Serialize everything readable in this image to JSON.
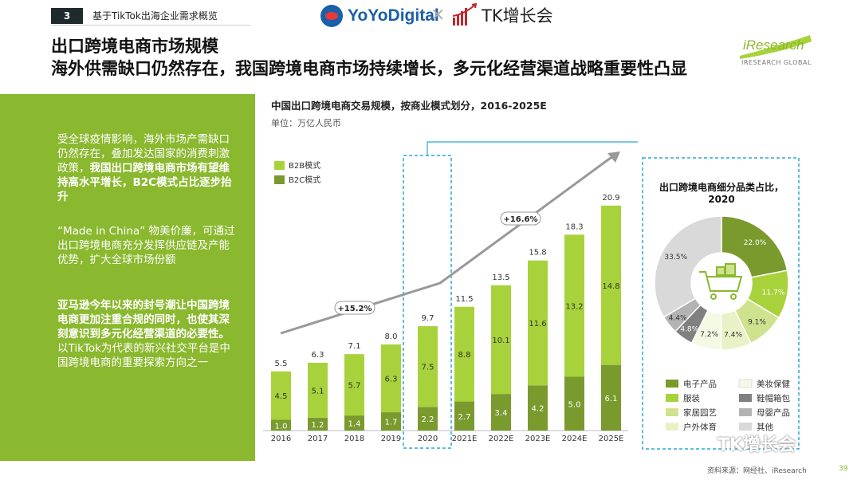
{
  "header": {
    "page_number": "3",
    "doc_title": "基于TikTok出海企业需求概览",
    "brand_left": "YoYoDigital",
    "brand_cross": "×",
    "brand_right": "TK增长会"
  },
  "heading": {
    "line1": "出口跨境电商市场规模",
    "line2": "海外供需缺口仍然存在，我国跨境电商市场持续增长，多元化经营渠道战略重要性凸显"
  },
  "logo": {
    "text": "iResearch",
    "sub": "IRESEARCH GLOBAL"
  },
  "sidebar": {
    "p1_normal": "受全球疫情影响，海外市场产需缺口仍然存在，叠加发达国家的消费刺激政策，",
    "p1_bold": "我国出口跨境电商市场有望维持高水平增长，B2C模式占比逐步抬升",
    "p2": "“Made in China” 物美价廉，可通过出口跨境电商充分发挥供应链及产能优势，扩大全球市场份额",
    "p3_bold": "亚马逊今年以来的封号潮让中国跨境电商更加注重合规的同时，也使其深刻意识到多元化经营渠道的必要性。",
    "p3_normal": "以TikTok为代表的新兴社交平台是中国跨境电商的重要探索方向之一"
  },
  "chart_data": [
    {
      "type": "bar",
      "title": "中国出口跨境电商交易规模，按商业模式划分，2016-2025E",
      "unit": "单位：万亿人民币",
      "categories": [
        "2016",
        "2017",
        "2018",
        "2019",
        "2020",
        "2021E",
        "2022E",
        "2023E",
        "2024E",
        "2025E"
      ],
      "series": [
        {
          "name": "B2C模式",
          "values": [
            1.0,
            1.2,
            1.4,
            1.7,
            2.2,
            2.7,
            3.4,
            4.2,
            5.0,
            6.1
          ],
          "color": "#7a9a2e"
        },
        {
          "name": "B2B模式",
          "values": [
            4.5,
            5.1,
            5.7,
            6.3,
            7.5,
            8.8,
            10.1,
            11.6,
            13.2,
            14.8
          ],
          "color": "#a8d23c"
        }
      ],
      "totals": [
        5.5,
        6.3,
        7.1,
        8.0,
        9.7,
        11.5,
        13.5,
        15.8,
        18.3,
        20.9
      ],
      "legend": [
        "B2B模式",
        "B2C模式"
      ],
      "legend_position": "top-left",
      "growth_labels": [
        "+15.2%",
        "+16.6%"
      ],
      "highlight_category": "2020",
      "ylim": [
        0,
        22
      ]
    },
    {
      "type": "pie",
      "title": "出口跨境电商细分品类占比，2020",
      "slices": [
        {
          "name": "电子产品",
          "value": 22.0,
          "label": "22.0%",
          "color": "#7a9a2e"
        },
        {
          "name": "服装",
          "value": 11.7,
          "label": "11.7%",
          "color": "#a8d23c"
        },
        {
          "name": "家居园艺",
          "value": 9.1,
          "label": "9.1%",
          "color": "#cfe38f"
        },
        {
          "name": "户外体育",
          "value": 7.4,
          "label": "7.4%",
          "color": "#e8f2c6"
        },
        {
          "name": "美妆保健",
          "value": 7.2,
          "label": "7.2%",
          "color": "#f4f9e4"
        },
        {
          "name": "鞋帽箱包",
          "value": 4.8,
          "label": "4.8%",
          "color": "#808080"
        },
        {
          "name": "母婴产品",
          "value": 4.4,
          "label": "4.4%",
          "color": "#b3b3b3"
        },
        {
          "name": "其他",
          "value": 33.5,
          "label": "33.5%",
          "color": "#d9d9d9"
        }
      ],
      "legend": [
        "电子产品",
        "美妆保健",
        "服装",
        "鞋帽箱包",
        "家居园艺",
        "母婴产品",
        "户外体育",
        "其他"
      ],
      "legend_position": "bottom",
      "center_icon": "shopping-cart-icon"
    }
  ],
  "footer": {
    "source": "资料来源：网经社、iResearch",
    "slide_number": "39",
    "watermark": "TK增长会"
  }
}
